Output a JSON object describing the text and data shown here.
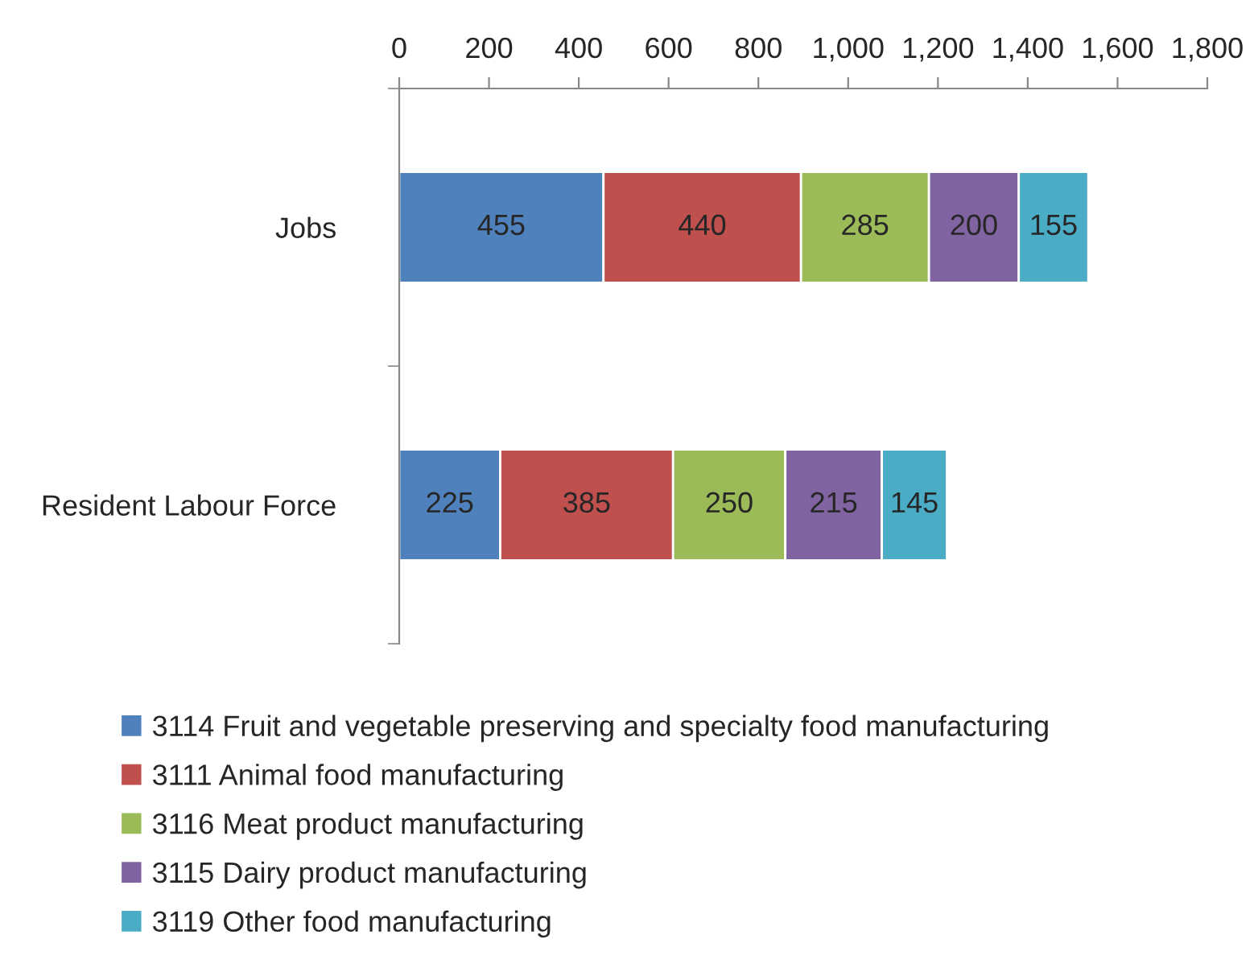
{
  "chart_data": {
    "type": "bar",
    "orientation": "horizontal",
    "stacked": true,
    "data_labels": true,
    "legend": "bottom",
    "grid": false,
    "categories": [
      "Jobs",
      "Resident Labour Force"
    ],
    "xlim": [
      0,
      1800
    ],
    "xticks": [
      0,
      200,
      400,
      600,
      800,
      {
        "value": 1000,
        "label": "1,000"
      },
      {
        "value": 1200,
        "label": "1,200"
      },
      {
        "value": 1400,
        "label": "1,400"
      },
      {
        "value": 1600,
        "label": "1,600"
      },
      {
        "value": 1800,
        "label": "1,800"
      }
    ],
    "series": [
      {
        "name": "3114 Fruit and vegetable preserving and specialty food manufacturing",
        "color": "#4f81bd",
        "values": [
          455,
          225
        ]
      },
      {
        "name": "3111 Animal food manufacturing",
        "color": "#c0504d",
        "values": [
          440,
          385
        ]
      },
      {
        "name": "3116 Meat product manufacturing",
        "color": "#9bbb59",
        "values": [
          285,
          250
        ]
      },
      {
        "name": "3115 Dairy product manufacturing",
        "color": "#8064a2",
        "values": [
          200,
          215
        ]
      },
      {
        "name": "3119 Other food manufacturing",
        "color": "#4bacc6",
        "values": [
          155,
          145
        ]
      }
    ]
  }
}
